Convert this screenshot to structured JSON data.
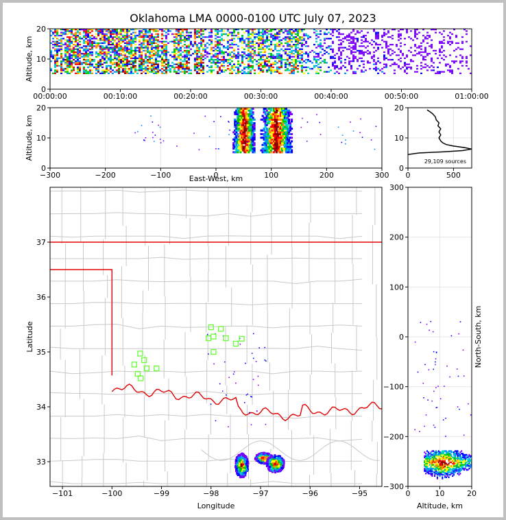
{
  "title": "Oklahoma LMA 0000-0100 UTC July 07, 2023",
  "colors": {
    "border_state": "#e00000",
    "county_lines": "#c8c8c8",
    "stations": "#66ff33",
    "density_ramp": [
      "#7a00ff",
      "#0000ff",
      "#008cff",
      "#00d2c8",
      "#00c800",
      "#ffff00",
      "#ff8c00",
      "#ff0000",
      "#8b0000"
    ]
  },
  "chart_data": [
    {
      "type": "heatmap",
      "name": "time-altitude",
      "xlabel": "",
      "ylabel": "Altitude, km",
      "x_tick_labels": [
        "00:00:00",
        "00:10:00",
        "00:20:00",
        "00:30:00",
        "00:40:00",
        "00:50:00",
        "01:00:00"
      ],
      "xlim_minutes": [
        0,
        60
      ],
      "ylim": [
        0,
        20
      ],
      "y_ticks": [
        0,
        10,
        20
      ],
      "altitude_band_km": [
        5,
        20
      ]
    },
    {
      "type": "heatmap",
      "name": "east-west-altitude",
      "xlabel": "East-West, km",
      "ylabel": "Altitude, km",
      "xlim": [
        -300,
        300
      ],
      "x_ticks": [
        -300,
        -200,
        -100,
        0,
        100,
        200,
        300
      ],
      "ylim": [
        0,
        20
      ],
      "y_ticks": [
        0,
        10,
        20
      ],
      "cores": [
        {
          "x_range": [
            38,
            62
          ],
          "z_range": [
            5,
            20
          ]
        },
        {
          "x_range": [
            88,
            128
          ],
          "z_range": [
            5,
            20
          ]
        }
      ]
    },
    {
      "type": "line",
      "name": "source-altitude-histogram",
      "annotation": "29,109 sources",
      "xlim": [
        0,
        700
      ],
      "x_ticks": [
        0,
        500
      ],
      "ylim": [
        0,
        20
      ],
      "y_ticks": [
        0,
        10,
        20
      ],
      "points": [
        [
          0,
          4.5
        ],
        [
          120,
          5.0
        ],
        [
          400,
          5.4
        ],
        [
          600,
          5.8
        ],
        [
          700,
          6.3
        ],
        [
          620,
          6.8
        ],
        [
          500,
          7.3
        ],
        [
          420,
          7.8
        ],
        [
          380,
          8.4
        ],
        [
          360,
          9.0
        ],
        [
          340,
          10.0
        ],
        [
          360,
          11.0
        ],
        [
          340,
          12.0
        ],
        [
          360,
          13.0
        ],
        [
          330,
          14.0
        ],
        [
          340,
          15.0
        ],
        [
          310,
          16.0
        ],
        [
          300,
          17.0
        ],
        [
          270,
          18.0
        ],
        [
          240,
          18.7
        ],
        [
          210,
          19.3
        ]
      ]
    },
    {
      "type": "scatter",
      "name": "plan-view-map",
      "xlabel": "Longitude",
      "ylabel": "Latitude",
      "xlim": [
        -101.25,
        -94.55
      ],
      "ylim": [
        32.55,
        38.0
      ],
      "x_ticks": [
        -101,
        -100,
        -99,
        -98,
        -97,
        -96,
        -95
      ],
      "y_ticks": [
        33,
        34,
        35,
        36,
        37
      ],
      "stations": [
        [
          -99.43,
          34.97
        ],
        [
          -99.35,
          34.85
        ],
        [
          -99.55,
          34.77
        ],
        [
          -99.3,
          34.7
        ],
        [
          -99.48,
          34.6
        ],
        [
          -99.42,
          34.52
        ],
        [
          -99.1,
          34.7
        ],
        [
          -98.0,
          35.45
        ],
        [
          -97.95,
          35.28
        ],
        [
          -97.8,
          35.42
        ],
        [
          -98.05,
          35.25
        ],
        [
          -97.7,
          35.25
        ],
        [
          -97.5,
          35.15
        ],
        [
          -97.38,
          35.24
        ],
        [
          -97.95,
          35.0
        ]
      ],
      "storm_clusters": [
        {
          "lon": -97.4,
          "lat": 32.95,
          "rx": 0.13,
          "ry": 0.22
        },
        {
          "lon": -96.95,
          "lat": 33.08,
          "rx": 0.18,
          "ry": 0.1
        },
        {
          "lon": -96.72,
          "lat": 32.98,
          "rx": 0.18,
          "ry": 0.16
        }
      ]
    },
    {
      "type": "heatmap",
      "name": "altitude-north-south",
      "xlabel": "Altitude, km",
      "ylabel": "North-South, km",
      "xlim": [
        0,
        20
      ],
      "x_ticks": [
        0,
        10,
        20
      ],
      "ylim": [
        -300,
        300
      ],
      "y_ticks": [
        -300,
        -200,
        -100,
        0,
        100,
        200,
        300
      ],
      "core": {
        "z_range": [
          5,
          20
        ],
        "ns_range": [
          -290,
          -225
        ],
        "center_ns": -250
      }
    }
  ]
}
